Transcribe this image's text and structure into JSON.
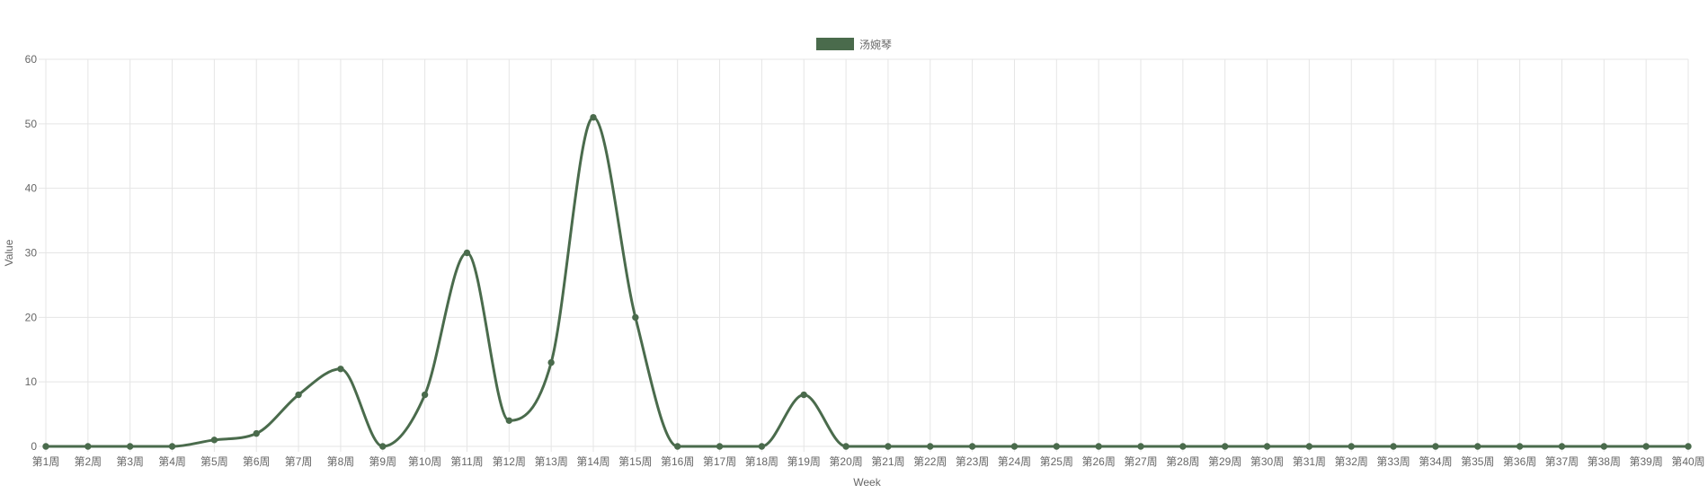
{
  "colors": {
    "series": "#4a6b4c",
    "grid": "#e5e5e5",
    "axis_text": "#666666"
  },
  "chart_data": {
    "type": "line",
    "xlabel": "Week",
    "ylabel": "Value",
    "ylim": [
      0,
      60
    ],
    "yticks": [
      0,
      10,
      20,
      30,
      40,
      50,
      60
    ],
    "grid": true,
    "legend_position": "top-center",
    "categories": [
      "第1周",
      "第2周",
      "第3周",
      "第4周",
      "第5周",
      "第6周",
      "第7周",
      "第8周",
      "第9周",
      "第10周",
      "第11周",
      "第12周",
      "第13周",
      "第14周",
      "第15周",
      "第16周",
      "第17周",
      "第18周",
      "第19周",
      "第20周",
      "第21周",
      "第22周",
      "第23周",
      "第24周",
      "第25周",
      "第26周",
      "第27周",
      "第28周",
      "第29周",
      "第30周",
      "第31周",
      "第32周",
      "第33周",
      "第34周",
      "第35周",
      "第36周",
      "第37周",
      "第38周",
      "第39周",
      "第40周"
    ],
    "series": [
      {
        "name": "汤婉琴",
        "color": "#4a6b4c",
        "values": [
          0,
          0,
          0,
          0,
          1,
          2,
          8,
          12,
          0,
          8,
          30,
          4,
          13,
          51,
          20,
          0,
          0,
          0,
          8,
          0,
          0,
          0,
          0,
          0,
          0,
          0,
          0,
          0,
          0,
          0,
          0,
          0,
          0,
          0,
          0,
          0,
          0,
          0,
          0,
          0
        ]
      }
    ]
  }
}
